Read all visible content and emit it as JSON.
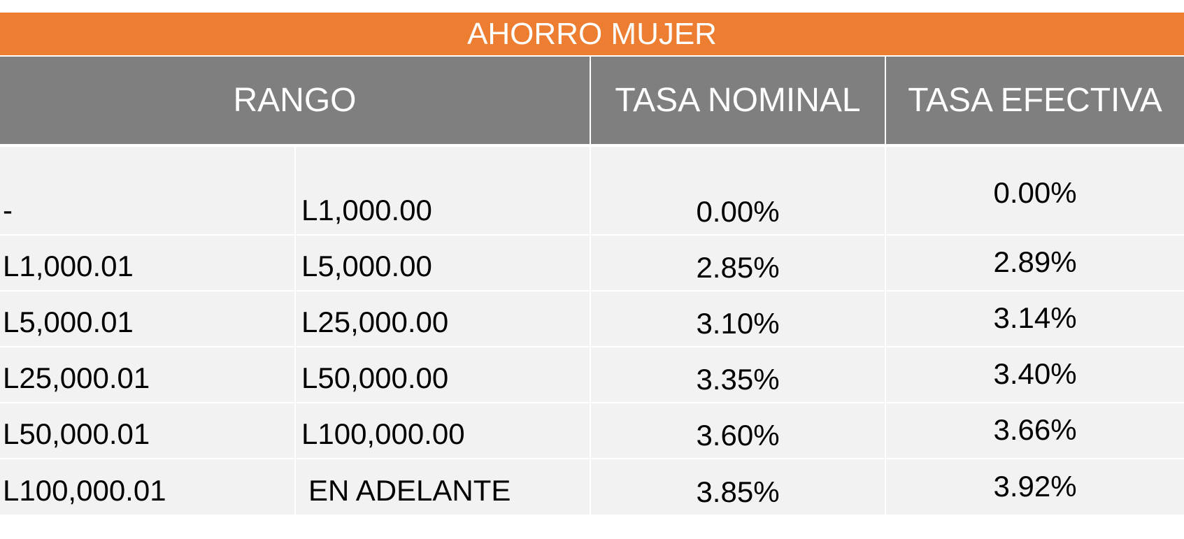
{
  "table": {
    "title": "AHORRO MUJER",
    "headers": {
      "range": "RANGO",
      "nominal": "TASA NOMINAL",
      "effective": "TASA EFECTIVA"
    },
    "rows": [
      {
        "from": "-",
        "to": "L1,000.00",
        "nominal": "0.00%",
        "effective": "0.00%"
      },
      {
        "from": "L1,000.01",
        "to": "L5,000.00",
        "nominal": "2.85%",
        "effective": "2.89%"
      },
      {
        "from": "L5,000.01",
        "to": "L25,000.00",
        "nominal": "3.10%",
        "effective": "3.14%"
      },
      {
        "from": "L25,000.01",
        "to": "L50,000.00",
        "nominal": "3.35%",
        "effective": "3.40%"
      },
      {
        "from": "L50,000.01",
        "to": "L100,000.00",
        "nominal": "3.60%",
        "effective": "3.66%"
      },
      {
        "from": "L100,000.01",
        "to": "EN ADELANTE",
        "nominal": "3.85%",
        "effective": "3.92%"
      }
    ]
  },
  "colors": {
    "title_bg": "#ED7D31",
    "header_bg": "#7F7F7F",
    "body_bg": "#F2F2F2"
  }
}
